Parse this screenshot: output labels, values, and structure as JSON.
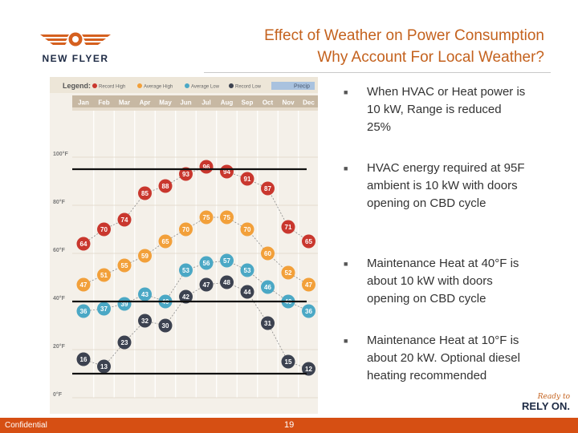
{
  "header": {
    "logo_text": "NEW FLYER",
    "title_line1": "Effect of Weather on Power Consumption",
    "title_line2": "Why Account For Local Weather?"
  },
  "bullets": [
    {
      "text": "When HVAC or Heat power is 10 kW, Range is reduced 25%"
    },
    {
      "text": "HVAC energy required at 95F ambient is 10 kW with doors opening on CBD cycle"
    },
    {
      "text": "Maintenance Heat at 40°F is about 10 kW with doors opening on CBD cycle"
    },
    {
      "text": "Maintenance Heat at 10°F is about 20 kW.  Optional diesel heating recommended"
    }
  ],
  "footer": {
    "left_text": "Confidential",
    "page_number": "19",
    "tagline_top": "Ready to",
    "tagline_bottom": "RELY ON."
  },
  "colors": {
    "title": "#c4621e",
    "footer_bar": "#d64f13",
    "record_high": "#c9372e",
    "average_high": "#f2a03a",
    "average_low": "#4ba8c5",
    "record_low": "#3c4250",
    "precip": "#a9c2df"
  },
  "chart_data": {
    "type": "line",
    "legend_title": "Legend:",
    "legend": [
      "Record High",
      "Average High",
      "Average Low",
      "Record Low",
      "Precip"
    ],
    "categories": [
      "Jan",
      "Feb",
      "Mar",
      "Apr",
      "May",
      "Jun",
      "Jul",
      "Aug",
      "Sep",
      "Oct",
      "Nov",
      "Dec"
    ],
    "series": [
      {
        "name": "Record High",
        "values": [
          64,
          70,
          74,
          85,
          88,
          93,
          96,
          94,
          91,
          87,
          71,
          65
        ]
      },
      {
        "name": "Average High",
        "values": [
          47,
          51,
          55,
          59,
          65,
          70,
          75,
          75,
          70,
          60,
          52,
          47
        ]
      },
      {
        "name": "Average Low",
        "values": [
          36,
          37,
          39,
          43,
          40,
          53,
          56,
          57,
          53,
          46,
          40,
          36
        ]
      },
      {
        "name": "Record Low",
        "values": [
          16,
          13,
          23,
          32,
          30,
          42,
          47,
          48,
          44,
          31,
          15,
          12
        ]
      }
    ],
    "yticks": [
      "0°F",
      "20°F",
      "40°F",
      "60°F",
      "80°F",
      "100°F"
    ],
    "ylim": [
      0,
      100
    ],
    "reference_lines": [
      95,
      40,
      10
    ],
    "grid": true
  }
}
